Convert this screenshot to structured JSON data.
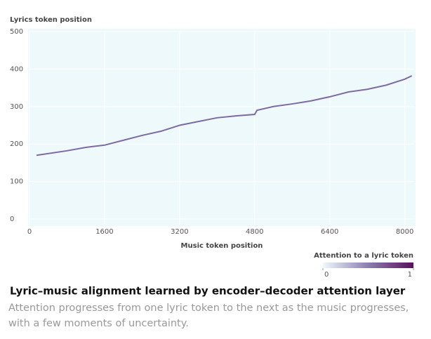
{
  "chart_data": {
    "type": "line",
    "y_axis_title": "Lyrics token position",
    "x_axis_title": "Music token position",
    "title": "Lyric–music alignment learned by encoder–decoder attention layer",
    "subtitle": "Attention progresses from one lyric token to the next as the music progresses, with a few moments of uncertainty.",
    "x": [
      150,
      800,
      1200,
      1600,
      2000,
      2400,
      2800,
      3200,
      3600,
      4000,
      4400,
      4800,
      4850,
      5200,
      5600,
      6000,
      6400,
      6800,
      7200,
      7600,
      8000,
      8150
    ],
    "values": [
      170,
      182,
      191,
      197,
      210,
      223,
      234,
      250,
      260,
      270,
      275,
      279,
      290,
      300,
      307,
      315,
      326,
      339,
      346,
      357,
      373,
      382
    ],
    "color": "#7d6aa3",
    "background": "#eef9fc",
    "xlim": [
      0,
      8200
    ],
    "xticks": [
      0,
      1600,
      3200,
      4800,
      6400,
      8000
    ],
    "ylim": [
      -15,
      500
    ],
    "yticks": [
      0,
      100,
      200,
      300,
      400,
      500
    ],
    "grid": true,
    "colorbar": {
      "label": "Attention to a lyric token",
      "ticks": [
        0,
        1
      ],
      "colors": [
        "#eef9fc",
        "#8a7fb0",
        "#5c0f5e"
      ]
    }
  }
}
